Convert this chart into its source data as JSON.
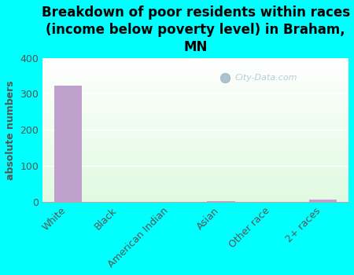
{
  "title": "Breakdown of poor residents within races\n(income below poverty level) in Braham,\nMN",
  "categories": [
    "White",
    "Black",
    "American Indian",
    "Asian",
    "Other race",
    "2+ races"
  ],
  "values": [
    323,
    0,
    0,
    2,
    0,
    5
  ],
  "bar_color": "#c0a0cc",
  "background_color": "#00ffff",
  "ylabel": "absolute numbers",
  "ylim": [
    0,
    400
  ],
  "yticks": [
    0,
    100,
    200,
    300,
    400
  ],
  "watermark": "City-Data.com",
  "title_fontsize": 12,
  "ylabel_fontsize": 9,
  "tick_fontsize": 9
}
